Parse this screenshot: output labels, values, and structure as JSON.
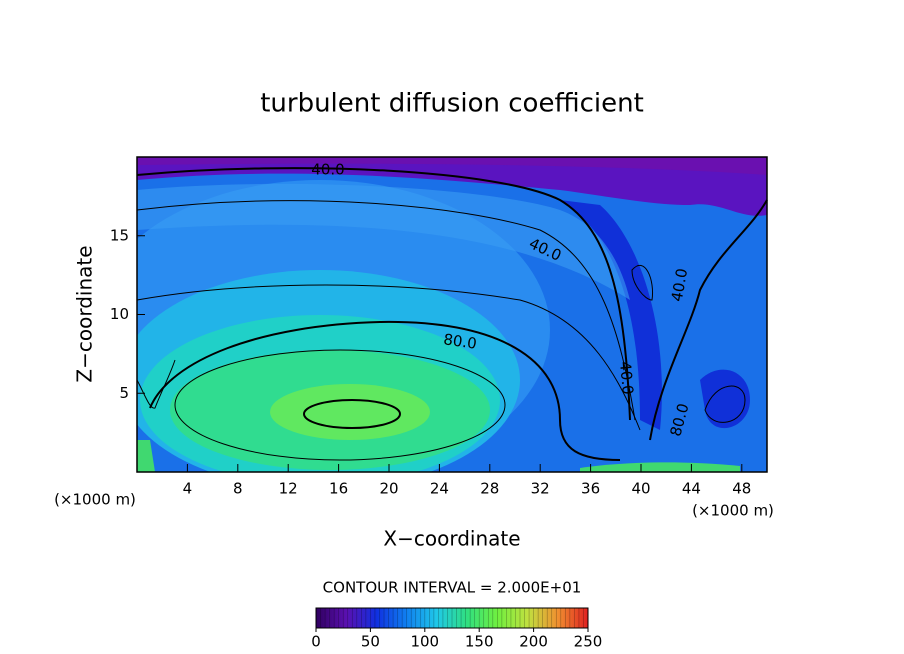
{
  "chart_data": {
    "type": "contour",
    "title": "turbulent diffusion coefficient",
    "x_label": "X−coordinate",
    "y_label": "Z−coordinate",
    "x_unit_left": "(×1000 m)",
    "x_unit_right": "(×1000 m)",
    "xlim": [
      0,
      50
    ],
    "xticks": [
      4,
      8,
      12,
      16,
      20,
      24,
      28,
      32,
      36,
      40,
      44,
      48
    ],
    "ylim": [
      0,
      20
    ],
    "yticks": [
      5,
      10,
      15
    ],
    "contour_interval_text": "CONTOUR INTERVAL = 2.000E+01",
    "contour_labels": [
      "40.0",
      "40.0",
      "40.0",
      "40.0",
      "80.0",
      "80.0"
    ],
    "colorbar": {
      "lim": [
        0,
        250
      ],
      "ticks": [
        0,
        50,
        100,
        150,
        200,
        250
      ],
      "colors": [
        "#300060",
        "#5a10b0",
        "#1030e0",
        "#1080f0",
        "#20c8e8",
        "#30e080",
        "#70f040",
        "#c0e040",
        "#f09030",
        "#e02020"
      ]
    }
  }
}
